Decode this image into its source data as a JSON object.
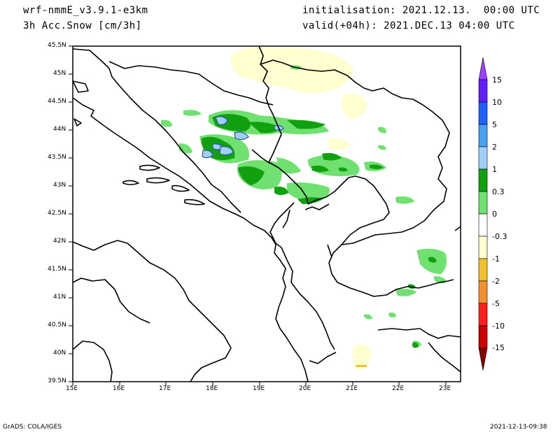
{
  "header": {
    "model": "wrf-nmmE_v3.9.1-e3km",
    "field": "3h Acc.Snow [cm/3h]",
    "init": "initialisation: 2021.12.13.  00:00 UTC",
    "valid": "valid(+04h): 2021.DEC.13 04:00 UTC"
  },
  "footer": {
    "credit": "GrADS: COLA/IGES",
    "timestamp": "2021-12-13-09:38"
  },
  "map": {
    "lon_ticks": [
      "15E",
      "16E",
      "17E",
      "18E",
      "19E",
      "20E",
      "21E",
      "22E",
      "23E"
    ],
    "lat_ticks": [
      "45.5N",
      "45N",
      "44.5N",
      "44N",
      "43.5N",
      "43N",
      "42.5N",
      "42N",
      "41.5N",
      "41N",
      "40.5N",
      "40N",
      "39.5N"
    ]
  },
  "colorbar": {
    "labels": [
      "15",
      "10",
      "5",
      "2",
      "1",
      "0.3",
      "0",
      "-0.3",
      "-1",
      "-2",
      "-5",
      "-10",
      "-15"
    ],
    "colors": [
      "#6020ff",
      "#2040ff",
      "#4aa0ee",
      "#a0d0f8",
      "#10a010",
      "#70e070",
      "#ffffff",
      "#ffffd0",
      "#f0c030",
      "#f09030",
      "#ff2020",
      "#cc0000",
      "#990000"
    ],
    "top_color": "#a040ff",
    "bottom_color": "#880000"
  }
}
